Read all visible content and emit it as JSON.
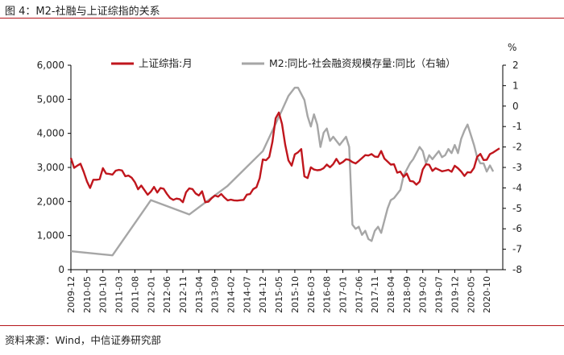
{
  "figure": {
    "title": "图 4：M2-社融与上证综指的关系",
    "source": "资料来源：Wind，中信证券研究部"
  },
  "colors": {
    "accent_rule": "#b5161b",
    "series_index": "#c0161d",
    "series_gap": "#a6a6a6",
    "axis": "#000000"
  },
  "chart_data": {
    "type": "line",
    "title": "",
    "xlabel": "",
    "ylabel_left": "",
    "ylabel_right": "%",
    "ylim_left": [
      0,
      6000
    ],
    "ylim_right": [
      -8,
      2
    ],
    "yticks_left": [
      "0",
      "1,000",
      "2,000",
      "3,000",
      "4,000",
      "5,000",
      "6,000"
    ],
    "yticks_right": [
      "-8",
      "-7",
      "-6",
      "-5",
      "-4",
      "-3",
      "-2",
      "-1",
      "0",
      "1",
      "2"
    ],
    "x_start": "2009-12",
    "x_end": "2020-11",
    "x_tick_labels": [
      "2009-12",
      "2010-05",
      "2010-10",
      "2011-03",
      "2011-08",
      "2012-01",
      "2012-06",
      "2012-11",
      "2013-04",
      "2013-09",
      "2014-02",
      "2014-07",
      "2014-12",
      "2015-05",
      "2015-10",
      "2016-03",
      "2016-08",
      "2017-01",
      "2017-06",
      "2017-11",
      "2018-04",
      "2018-09",
      "2019-02",
      "2019-07",
      "2019-12",
      "2020-05",
      "2020-10"
    ],
    "grid": false,
    "legend_position": "top",
    "series": [
      {
        "name": "上证综指:月",
        "axis": "left",
        "points": [
          [
            "2009-12",
            3277
          ],
          [
            "2010-01",
            2989
          ],
          [
            "2010-02",
            3051
          ],
          [
            "2010-03",
            3109
          ],
          [
            "2010-04",
            2870
          ],
          [
            "2010-05",
            2592
          ],
          [
            "2010-06",
            2398
          ],
          [
            "2010-07",
            2638
          ],
          [
            "2010-08",
            2638
          ],
          [
            "2010-09",
            2656
          ],
          [
            "2010-10",
            2979
          ],
          [
            "2010-11",
            2820
          ],
          [
            "2010-12",
            2808
          ],
          [
            "2011-01",
            2790
          ],
          [
            "2011-02",
            2905
          ],
          [
            "2011-03",
            2928
          ],
          [
            "2011-04",
            2911
          ],
          [
            "2011-05",
            2743
          ],
          [
            "2011-06",
            2762
          ],
          [
            "2011-07",
            2701
          ],
          [
            "2011-08",
            2568
          ],
          [
            "2011-09",
            2359
          ],
          [
            "2011-10",
            2468
          ],
          [
            "2011-11",
            2333
          ],
          [
            "2011-12",
            2199
          ],
          [
            "2012-01",
            2292
          ],
          [
            "2012-02",
            2428
          ],
          [
            "2012-03",
            2263
          ],
          [
            "2012-04",
            2396
          ],
          [
            "2012-05",
            2373
          ],
          [
            "2012-06",
            2225
          ],
          [
            "2012-07",
            2103
          ],
          [
            "2012-08",
            2047
          ],
          [
            "2012-09",
            2086
          ],
          [
            "2012-10",
            2069
          ],
          [
            "2012-11",
            1980
          ],
          [
            "2012-12",
            2269
          ],
          [
            "2013-01",
            2385
          ],
          [
            "2013-02",
            2365
          ],
          [
            "2013-03",
            2237
          ],
          [
            "2013-04",
            2178
          ],
          [
            "2013-05",
            2301
          ],
          [
            "2013-06",
            1979
          ],
          [
            "2013-07",
            1994
          ],
          [
            "2013-08",
            2098
          ],
          [
            "2013-09",
            2175
          ],
          [
            "2013-10",
            2142
          ],
          [
            "2013-11",
            2220
          ],
          [
            "2013-12",
            2116
          ],
          [
            "2014-01",
            2033
          ],
          [
            "2014-02",
            2056
          ],
          [
            "2014-03",
            2033
          ],
          [
            "2014-04",
            2026
          ],
          [
            "2014-05",
            2039
          ],
          [
            "2014-06",
            2048
          ],
          [
            "2014-07",
            2202
          ],
          [
            "2014-08",
            2218
          ],
          [
            "2014-09",
            2364
          ],
          [
            "2014-10",
            2420
          ],
          [
            "2014-11",
            2683
          ],
          [
            "2014-12",
            3235
          ],
          [
            "2015-01",
            3210
          ],
          [
            "2015-02",
            3310
          ],
          [
            "2015-03",
            3748
          ],
          [
            "2015-04",
            4442
          ],
          [
            "2015-05",
            4612
          ],
          [
            "2015-06",
            4277
          ],
          [
            "2015-07",
            3664
          ],
          [
            "2015-08",
            3206
          ],
          [
            "2015-09",
            3053
          ],
          [
            "2015-10",
            3383
          ],
          [
            "2015-11",
            3445
          ],
          [
            "2015-12",
            3539
          ],
          [
            "2016-01",
            2738
          ],
          [
            "2016-02",
            2688
          ],
          [
            "2016-03",
            3004
          ],
          [
            "2016-04",
            2938
          ],
          [
            "2016-05",
            2917
          ],
          [
            "2016-06",
            2930
          ],
          [
            "2016-07",
            2979
          ],
          [
            "2016-08",
            3085
          ],
          [
            "2016-09",
            3005
          ],
          [
            "2016-10",
            3100
          ],
          [
            "2016-11",
            3250
          ],
          [
            "2016-12",
            3104
          ],
          [
            "2017-01",
            3159
          ],
          [
            "2017-02",
            3242
          ],
          [
            "2017-03",
            3223
          ],
          [
            "2017-04",
            3155
          ],
          [
            "2017-05",
            3117
          ],
          [
            "2017-06",
            3192
          ],
          [
            "2017-07",
            3273
          ],
          [
            "2017-08",
            3361
          ],
          [
            "2017-09",
            3349
          ],
          [
            "2017-10",
            3393
          ],
          [
            "2017-11",
            3317
          ],
          [
            "2017-12",
            3307
          ],
          [
            "2018-01",
            3481
          ],
          [
            "2018-02",
            3259
          ],
          [
            "2018-03",
            3169
          ],
          [
            "2018-04",
            3082
          ],
          [
            "2018-05",
            3095
          ],
          [
            "2018-06",
            2847
          ],
          [
            "2018-07",
            2876
          ],
          [
            "2018-08",
            2725
          ],
          [
            "2018-09",
            2821
          ],
          [
            "2018-10",
            2603
          ],
          [
            "2018-11",
            2588
          ],
          [
            "2018-12",
            2494
          ],
          [
            "2019-01",
            2585
          ],
          [
            "2019-02",
            2941
          ],
          [
            "2019-03",
            3091
          ],
          [
            "2019-04",
            3078
          ],
          [
            "2019-05",
            2899
          ],
          [
            "2019-06",
            2979
          ],
          [
            "2019-07",
            2933
          ],
          [
            "2019-08",
            2886
          ],
          [
            "2019-09",
            2905
          ],
          [
            "2019-10",
            2929
          ],
          [
            "2019-11",
            2872
          ],
          [
            "2019-12",
            3050
          ],
          [
            "2020-01",
            2977
          ],
          [
            "2020-02",
            2880
          ],
          [
            "2020-03",
            2750
          ],
          [
            "2020-04",
            2860
          ],
          [
            "2020-05",
            2852
          ],
          [
            "2020-06",
            2985
          ],
          [
            "2020-07",
            3310
          ],
          [
            "2020-08",
            3396
          ],
          [
            "2020-09",
            3218
          ],
          [
            "2020-10",
            3225
          ],
          [
            "2020-11",
            3391
          ],
          [
            "2020-12",
            3440
          ],
          [
            "2021-01",
            3500
          ],
          [
            "2021-02",
            3560
          ]
        ]
      },
      {
        "name": "M2:同比-社会融资规模存量:同比（右轴）",
        "axis": "right",
        "points": [
          [
            "2009-12",
            -7.1
          ],
          [
            "2011-01",
            -7.3
          ],
          [
            "2012-01",
            -4.6
          ],
          [
            "2013-01",
            -5.3
          ],
          [
            "2014-01",
            -3.9
          ],
          [
            "2014-12",
            -2.2
          ],
          [
            "2015-06",
            -0.2
          ],
          [
            "2015-08",
            0.5
          ],
          [
            "2015-10",
            0.9
          ],
          [
            "2015-11",
            0.9
          ],
          [
            "2016-01",
            0.3
          ],
          [
            "2016-02",
            -0.5
          ],
          [
            "2016-03",
            -1.0
          ],
          [
            "2016-04",
            -0.4
          ],
          [
            "2016-05",
            -0.9
          ],
          [
            "2016-06",
            -2.0
          ],
          [
            "2016-07",
            -1.3
          ],
          [
            "2016-08",
            -1.1
          ],
          [
            "2016-09",
            -1.7
          ],
          [
            "2016-10",
            -1.5
          ],
          [
            "2016-11",
            -1.7
          ],
          [
            "2016-12",
            -1.9
          ],
          [
            "2017-01",
            -1.7
          ],
          [
            "2017-02",
            -1.5
          ],
          [
            "2017-03",
            -2.0
          ],
          [
            "2017-04",
            -5.8
          ],
          [
            "2017-05",
            -6.0
          ],
          [
            "2017-06",
            -5.9
          ],
          [
            "2017-07",
            -6.3
          ],
          [
            "2017-08",
            -6.1
          ],
          [
            "2017-09",
            -6.5
          ],
          [
            "2017-10",
            -6.6
          ],
          [
            "2017-11",
            -6.1
          ],
          [
            "2017-12",
            -5.9
          ],
          [
            "2018-01",
            -6.2
          ],
          [
            "2018-02",
            -5.6
          ],
          [
            "2018-03",
            -5.0
          ],
          [
            "2018-04",
            -4.6
          ],
          [
            "2018-05",
            -4.5
          ],
          [
            "2018-06",
            -4.3
          ],
          [
            "2018-07",
            -4.1
          ],
          [
            "2018-08",
            -3.4
          ],
          [
            "2018-09",
            -3.1
          ],
          [
            "2018-10",
            -2.8
          ],
          [
            "2018-11",
            -2.6
          ],
          [
            "2018-12",
            -2.3
          ],
          [
            "2019-01",
            -2.0
          ],
          [
            "2019-02",
            -2.2
          ],
          [
            "2019-03",
            -2.8
          ],
          [
            "2019-04",
            -2.4
          ],
          [
            "2019-05",
            -2.6
          ],
          [
            "2019-06",
            -2.4
          ],
          [
            "2019-07",
            -2.2
          ],
          [
            "2019-08",
            -2.5
          ],
          [
            "2019-09",
            -2.4
          ],
          [
            "2019-10",
            -2.1
          ],
          [
            "2019-11",
            -2.3
          ],
          [
            "2019-12",
            -1.9
          ],
          [
            "2020-01",
            -2.3
          ],
          [
            "2020-02",
            -1.6
          ],
          [
            "2020-03",
            -1.2
          ],
          [
            "2020-04",
            -0.9
          ],
          [
            "2020-05",
            -1.4
          ],
          [
            "2020-06",
            -1.9
          ],
          [
            "2020-07",
            -2.5
          ],
          [
            "2020-08",
            -2.8
          ],
          [
            "2020-09",
            -2.8
          ],
          [
            "2020-10",
            -3.2
          ],
          [
            "2020-11",
            -2.9
          ],
          [
            "2020-12",
            -3.2
          ]
        ]
      }
    ]
  }
}
